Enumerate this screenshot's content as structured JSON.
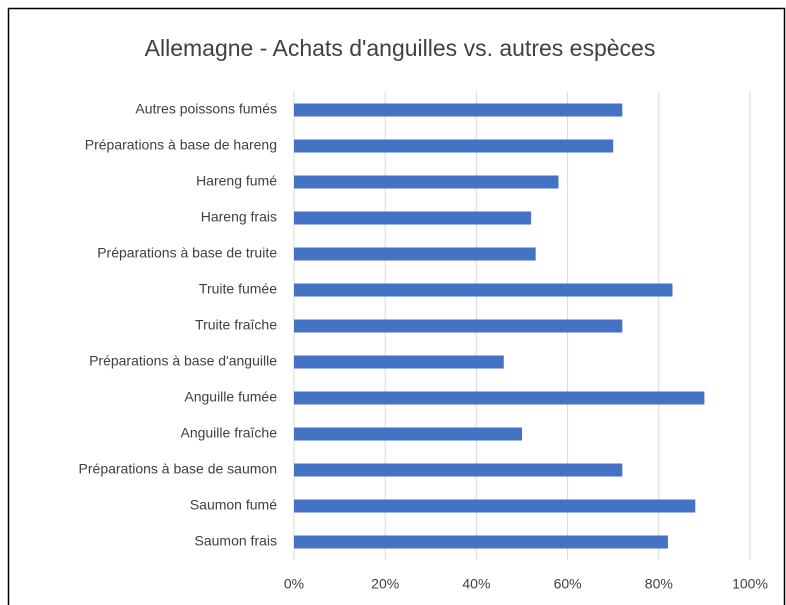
{
  "chart_data": {
    "type": "barh",
    "title": "Allemagne - Achats d'anguilles vs. autres espèces",
    "categories": [
      "Autres poissons fumés",
      "Préparations à base de hareng",
      "Hareng fumé",
      "Hareng frais",
      "Préparations à base de truite",
      "Truite fumée",
      "Truite fraîche",
      "Préparations à base d'anguille",
      "Anguille fumée",
      "Anguille fraîche",
      "Préparations à base de saumon",
      "Saumon fumé",
      "Saumon frais"
    ],
    "values": [
      72,
      70,
      58,
      52,
      53,
      83,
      72,
      46,
      90,
      50,
      72,
      88,
      82
    ],
    "color": "#4472c4",
    "xlim": [
      0,
      100
    ],
    "xticks": [
      {
        "value": 0,
        "label": "0%"
      },
      {
        "value": 20,
        "label": "20%"
      },
      {
        "value": 40,
        "label": "40%"
      },
      {
        "value": 60,
        "label": "60%"
      },
      {
        "value": 80,
        "label": "80%"
      },
      {
        "value": 100,
        "label": "100%"
      }
    ],
    "grid": true
  }
}
